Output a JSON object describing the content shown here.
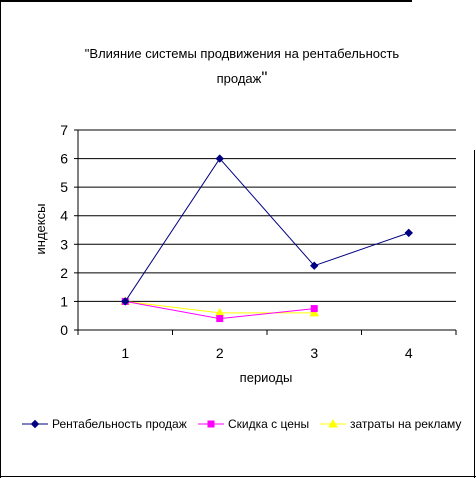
{
  "chart_data": {
    "type": "line",
    "title": "\"Влияние системы продвижения на рентабельность продаж\"",
    "title_line1": "\"Влияние системы продвижения на рентабельность",
    "title_line2": "продаж",
    "title_line2_quote": "\"",
    "xlabel": "периоды",
    "ylabel": "индексы",
    "categories": [
      "1",
      "2",
      "3",
      "4"
    ],
    "ylim": [
      0,
      7
    ],
    "yticks": [
      "0",
      "1",
      "2",
      "3",
      "4",
      "5",
      "6",
      "7"
    ],
    "grid": true,
    "legend_position": "bottom",
    "series": [
      {
        "name": "Рентабельность продаж",
        "values": [
          1,
          6,
          2.25,
          3.4
        ],
        "color": "#000080",
        "marker": "diamond"
      },
      {
        "name": "Скидка с цены",
        "values": [
          1,
          0.4,
          0.75,
          null
        ],
        "color": "#FF00FF",
        "marker": "square"
      },
      {
        "name": "затраты на рекламу",
        "values": [
          1,
          0.6,
          0.6,
          null
        ],
        "color": "#FFFF00",
        "marker": "triangle"
      }
    ]
  }
}
